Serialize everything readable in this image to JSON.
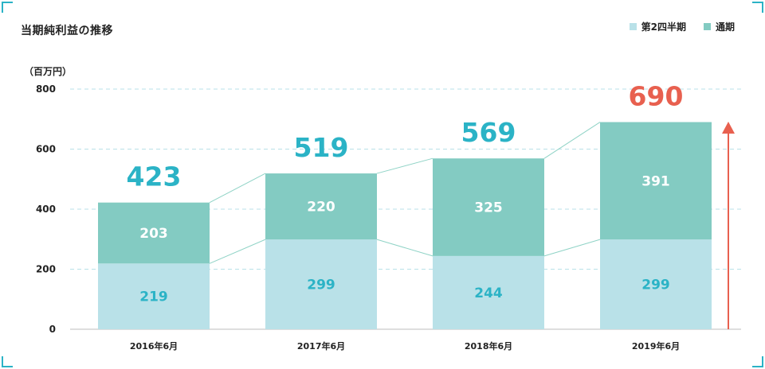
{
  "chart_data": {
    "type": "bar",
    "stacked": true,
    "title": "当期純利益の推移",
    "unit": "（百万円）",
    "categories": [
      "2016年6月",
      "2017年6月",
      "2018年6月",
      "2019年6月"
    ],
    "series": [
      {
        "name": "第2四半期",
        "values": [
          219,
          299,
          244,
          299
        ],
        "color": "#b9e1e8",
        "label_color": "#2bb3c6"
      },
      {
        "name": "通期",
        "values": [
          203,
          220,
          325,
          391
        ],
        "color": "#83cbc2",
        "label_color": "#ffffff"
      }
    ],
    "totals": [
      423,
      519,
      569,
      690
    ],
    "total_colors": [
      "#2bb3c6",
      "#2bb3c6",
      "#2bb3c6",
      "#e8604f"
    ],
    "ylim": [
      0,
      800
    ],
    "yticks": [
      0,
      200,
      400,
      600,
      800
    ],
    "grid": "dashed",
    "arrow": "up",
    "arrow_color": "#e8604f",
    "legend_position": "top-right"
  }
}
